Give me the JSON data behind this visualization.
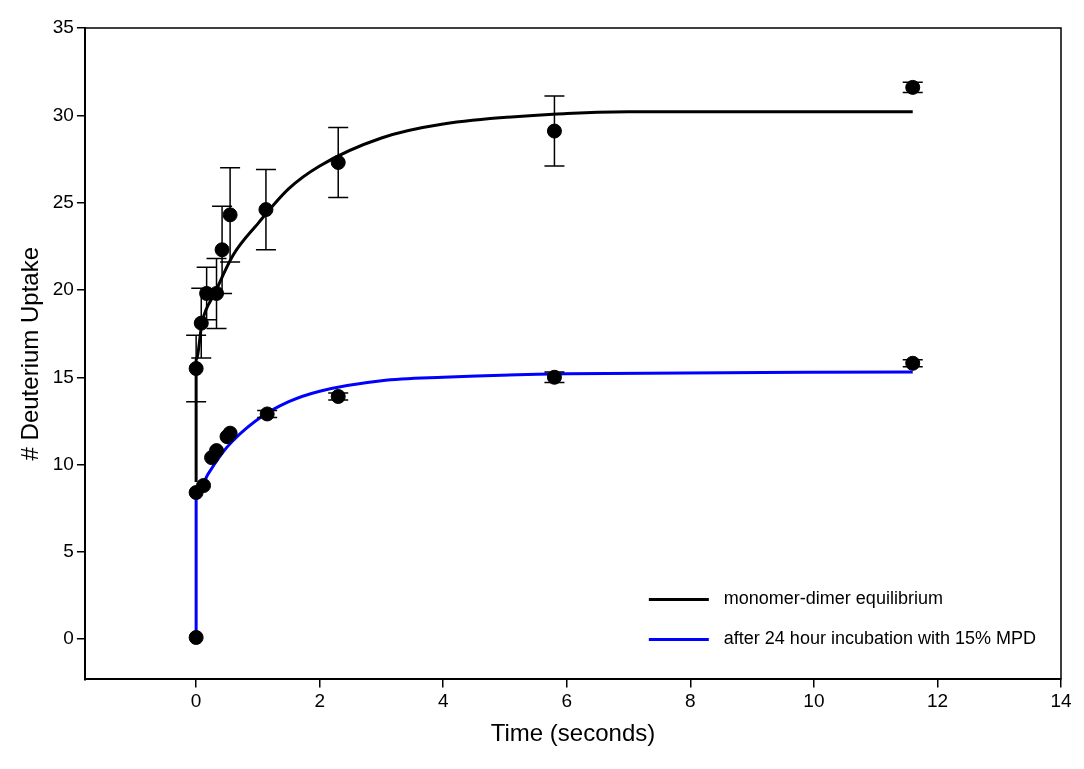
{
  "chart_data": {
    "type": "scatter",
    "xlabel": "Time (seconds)",
    "ylabel": "# Deuterium Uptake",
    "xlim": [
      -1.8,
      14
    ],
    "xticks": [
      0,
      2,
      4,
      6,
      8,
      10,
      12,
      14
    ],
    "ylim": [
      -2.3,
      35
    ],
    "yticks": [
      0,
      5,
      10,
      15,
      20,
      25,
      30,
      35
    ],
    "grid": false,
    "legend": "bottom right",
    "marker": "circle",
    "series": [
      {
        "color": "#000000",
        "x": [
          0,
          0.083,
          0.17,
          0.33,
          0.42,
          0.55,
          1.13,
          2.3,
          5.8,
          11.6
        ],
        "values": [
          15.5,
          18.1,
          19.8,
          19.8,
          22.3,
          24.3,
          24.6,
          27.3,
          29.1,
          31.6
        ],
        "errors": [
          1.9,
          2,
          1.5,
          2,
          2.5,
          2.7,
          2.3,
          2,
          2,
          0.3
        ]
      },
      {
        "color": "#000000",
        "x": [
          0,
          0,
          0.12,
          0.25,
          0.33,
          0.5,
          0.55,
          1.15,
          2.3,
          5.8,
          11.6
        ],
        "values": [
          0.1,
          8.4,
          8.8,
          10.4,
          10.8,
          11.6,
          11.8,
          12.9,
          13.9,
          15.0,
          15.8
        ],
        "errors": [
          null,
          null,
          null,
          null,
          null,
          null,
          null,
          0.2,
          0.2,
          0.3,
          0.2
        ]
      },
      {
        "type": "line",
        "marker": "none",
        "name": "monomer-dimer equilibrium",
        "color": "#000000",
        "x": [
          0,
          0,
          0.1,
          0.3,
          0.6,
          1,
          1.5,
          2,
          3,
          4,
          6,
          7,
          11.6
        ],
        "values": [
          9,
          16,
          18.2,
          19.8,
          22,
          23.8,
          25.8,
          27.1,
          28.7,
          29.5,
          30.1,
          30.2,
          30.2
        ]
      },
      {
        "type": "line",
        "marker": "none",
        "name": "after 24 hour incubation with 15% MPD",
        "color": "#0000ff",
        "x": [
          0,
          0,
          0.2,
          0.5,
          1,
          1.5,
          2,
          3,
          4,
          6,
          11.6
        ],
        "values": [
          0,
          8.3,
          9.5,
          11,
          12.6,
          13.6,
          14.2,
          14.8,
          15,
          15.2,
          15.3
        ]
      }
    ]
  }
}
